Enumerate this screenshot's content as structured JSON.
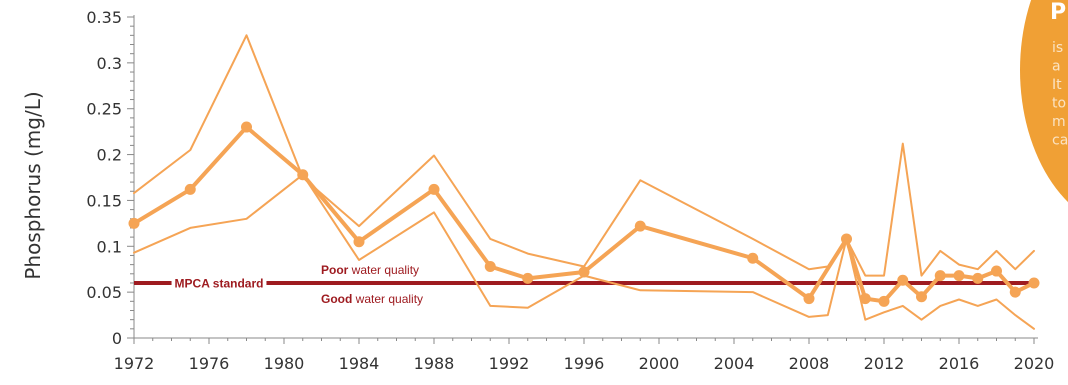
{
  "chart_data": {
    "type": "line",
    "title": "",
    "xlabel": "",
    "ylabel": "Phosphorus (mg/L)",
    "xlim": [
      1972,
      2020
    ],
    "ylim": [
      0,
      0.35
    ],
    "x_ticks": [
      1972,
      1976,
      1980,
      1984,
      1988,
      1992,
      1996,
      2000,
      2004,
      2008,
      2012,
      2016,
      2020
    ],
    "y_ticks": [
      {
        "value": 0,
        "label": "0"
      },
      {
        "value": 0.05,
        "label": "0.05"
      },
      {
        "value": 0.1,
        "label": "0.1"
      },
      {
        "value": 0.15,
        "label": "0.15"
      },
      {
        "value": 0.2,
        "label": "0.2"
      },
      {
        "value": 0.25,
        "label": "0.25"
      },
      {
        "value": 0.3,
        "label": "0.3"
      },
      {
        "value": 0.35,
        "label": "0.35"
      }
    ],
    "grid": false,
    "series": [
      {
        "role": "upper",
        "x": [
          1972,
          1975,
          1978,
          1981,
          1984,
          1988,
          1991,
          1993,
          1996,
          1999,
          2005,
          2008,
          2009,
          2010,
          2011,
          2012,
          2013,
          2014,
          2015,
          2016,
          2017,
          2018,
          2019,
          2020
        ],
        "values": [
          0.158,
          0.205,
          0.33,
          0.175,
          0.122,
          0.199,
          0.108,
          0.092,
          0.078,
          0.172,
          0.108,
          0.075,
          0.078,
          0.108,
          0.068,
          0.068,
          0.212,
          0.068,
          0.095,
          0.08,
          0.075,
          0.095,
          0.075,
          0.095
        ]
      },
      {
        "role": "mean",
        "x": [
          1972,
          1975,
          1978,
          1981,
          1984,
          1988,
          1991,
          1993,
          1996,
          1999,
          2005,
          2008,
          2010,
          2011,
          2012,
          2013,
          2014,
          2015,
          2016,
          2017,
          2018,
          2019,
          2020
        ],
        "values": [
          0.125,
          0.162,
          0.23,
          0.178,
          0.105,
          0.162,
          0.078,
          0.065,
          0.072,
          0.122,
          0.087,
          0.043,
          0.108,
          0.043,
          0.04,
          0.063,
          0.045,
          0.068,
          0.068,
          0.065,
          0.073,
          0.05,
          0.06
        ]
      },
      {
        "role": "lower",
        "x": [
          1972,
          1975,
          1978,
          1981,
          1984,
          1988,
          1991,
          1993,
          1996,
          1999,
          2005,
          2008,
          2009,
          2010,
          2011,
          2012,
          2013,
          2014,
          2015,
          2016,
          2017,
          2018,
          2019,
          2020
        ],
        "values": [
          0.093,
          0.12,
          0.13,
          0.178,
          0.085,
          0.137,
          0.035,
          0.033,
          0.068,
          0.052,
          0.05,
          0.023,
          0.025,
          0.108,
          0.02,
          0.028,
          0.035,
          0.02,
          0.035,
          0.042,
          0.035,
          0.042,
          0.025,
          0.01
        ]
      }
    ],
    "reference_line": {
      "value": 0.06,
      "label": "MPCA standard",
      "above_label_bold": "Poor",
      "above_label_rest": "water quality",
      "below_label_bold": "Good",
      "below_label_rest": "water quality"
    }
  },
  "info_bubble": {
    "heading": "P",
    "lines": [
      "is",
      "a",
      "It",
      "to",
      "m",
      "ca"
    ]
  },
  "colors": {
    "series": "#F5A455",
    "standard": "#9E1B20",
    "bubble": "#F0A035",
    "axis": "#888888",
    "text": "#333333"
  }
}
